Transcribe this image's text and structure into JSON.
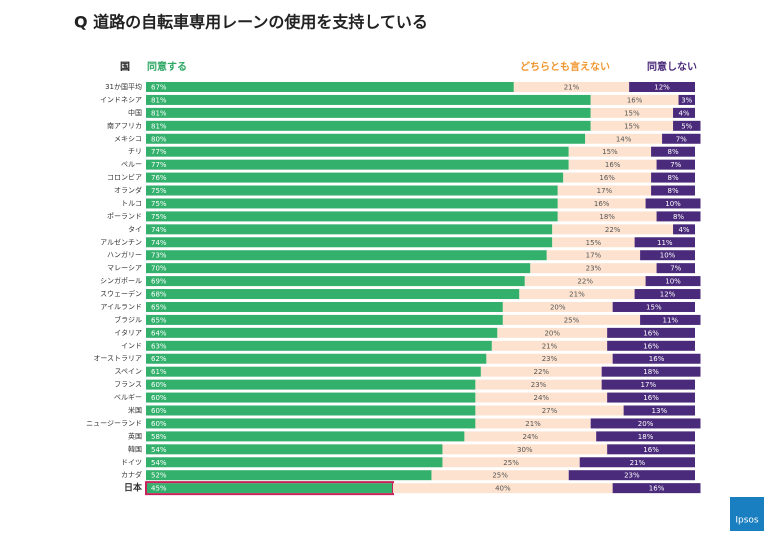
{
  "chart_data": {
    "type": "stacked-barh",
    "title": "Q 道路の自転車専用レーンの使用を支持している",
    "category_label": "国",
    "logo": "Ipsos",
    "categories": [
      "31か国平均",
      "インドネシア",
      "中国",
      "南アフリカ",
      "メキシコ",
      "チリ",
      "ペルー",
      "コロンビア",
      "オランダ",
      "トルコ",
      "ポーランド",
      "タイ",
      "アルゼンチン",
      "ハンガリー",
      "マレーシア",
      "シンガポール",
      "スウェーデン",
      "アイルランド",
      "ブラジル",
      "イタリア",
      "インド",
      "オーストラリア",
      "スペイン",
      "フランス",
      "ベルギー",
      "米国",
      "ニュージーランド",
      "英国",
      "韓国",
      "ドイツ",
      "カナダ",
      "日本"
    ],
    "xlim": [
      0,
      100
    ],
    "series": [
      {
        "name": "同意する",
        "color": "#33b06c",
        "label_color": "#2fa866",
        "values": [
          67,
          81,
          81,
          81,
          80,
          77,
          77,
          76,
          75,
          75,
          75,
          74,
          74,
          73,
          70,
          69,
          68,
          65,
          65,
          64,
          63,
          62,
          61,
          60,
          60,
          60,
          60,
          58,
          54,
          54,
          52,
          45
        ],
        "value_labels": [
          "67%",
          "81%",
          "81%",
          "81%",
          "80%",
          "77%",
          "77%",
          "76%",
          "75%",
          "75%",
          "75%",
          "74%",
          "74%",
          "73%",
          "70%",
          "69%",
          "68%",
          "65%",
          "65%",
          "64%",
          "63%",
          "62%",
          "61%",
          "60%",
          "60%",
          "60%",
          "60%",
          "58%",
          "54%",
          "54%",
          "52%",
          "45%"
        ]
      },
      {
        "name": "どちらとも言えない",
        "color": "#fde3cf",
        "label_color": "#f0962e",
        "values": [
          21,
          16,
          15,
          15,
          14,
          15,
          16,
          16,
          17,
          16,
          18,
          22,
          15,
          17,
          23,
          22,
          21,
          20,
          25,
          20,
          21,
          23,
          22,
          23,
          24,
          27,
          21,
          24,
          30,
          25,
          25,
          40
        ],
        "value_labels": [
          "21%",
          "16%",
          "15%",
          "15%",
          "14%",
          "15%",
          "16%",
          "16%",
          "17%",
          "16%",
          "18%",
          "22%",
          "15%",
          "17%",
          "23%",
          "22%",
          "21%",
          "20%",
          "25%",
          "20%",
          "21%",
          "23%",
          "22%",
          "23%",
          "24%",
          "27%",
          "21%",
          "24%",
          "30%",
          "25%",
          "25%",
          "40%"
        ]
      },
      {
        "name": "同意しない",
        "color": "#4a2a7a",
        "label_color": "#4a2a7a",
        "values": [
          12,
          3,
          4,
          5,
          7,
          8,
          7,
          8,
          8,
          10,
          8,
          4,
          11,
          10,
          7,
          10,
          12,
          15,
          11,
          16,
          16,
          16,
          18,
          17,
          16,
          13,
          20,
          18,
          16,
          21,
          23,
          16
        ],
        "value_labels": [
          "12%",
          "3%",
          "4%",
          "5%",
          "7%",
          "8%",
          "7%",
          "8%",
          "8%",
          "10%",
          "8%",
          "4%",
          "11%",
          "10%",
          "7%",
          "10%",
          "12%",
          "15%",
          "11%",
          "16%",
          "16%",
          "16%",
          "18%",
          "17%",
          "16%",
          "13%",
          "20%",
          "18%",
          "16%",
          "21%",
          "23%",
          "16%"
        ]
      }
    ]
  }
}
